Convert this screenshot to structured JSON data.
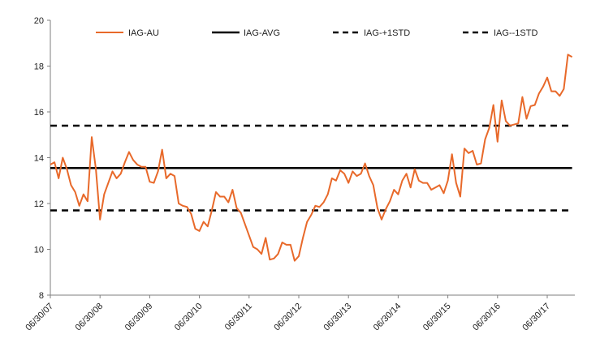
{
  "chart_data": {
    "type": "line",
    "title": "",
    "xlabel": "",
    "ylabel": "",
    "ylim": [
      8,
      20
    ],
    "y_ticks": [
      "8",
      "10",
      "12",
      "14",
      "16",
      "18",
      "20"
    ],
    "x_ticks": [
      "06/30/07",
      "06/30/08",
      "06/30/09",
      "06/30/10",
      "06/30/11",
      "06/30/12",
      "06/30/13",
      "06/30/14",
      "06/30/15",
      "06/30/16",
      "06/30/17"
    ],
    "x_start": "06/30/07",
    "x_step": "monthly",
    "grid": false,
    "legend_position": "top",
    "series": [
      {
        "name": "IAG-AU",
        "color": "#E8692A",
        "style": "solid",
        "values": [
          13.7,
          13.8,
          13.1,
          14.0,
          13.5,
          12.8,
          12.5,
          11.9,
          12.4,
          12.1,
          14.9,
          13.5,
          11.3,
          12.4,
          12.9,
          13.4,
          13.1,
          13.3,
          13.8,
          14.25,
          13.9,
          13.7,
          13.6,
          13.6,
          12.95,
          12.9,
          13.4,
          14.35,
          13.1,
          13.3,
          13.2,
          12.0,
          11.9,
          11.85,
          11.55,
          10.9,
          10.8,
          11.2,
          11.0,
          11.7,
          12.5,
          12.3,
          12.3,
          12.05,
          12.6,
          11.8,
          11.6,
          11.1,
          10.6,
          10.1,
          10.0,
          9.8,
          10.5,
          9.55,
          9.6,
          9.8,
          10.3,
          10.2,
          10.2,
          9.5,
          9.7,
          10.5,
          11.2,
          11.5,
          11.9,
          11.85,
          12.05,
          12.4,
          13.1,
          13.0,
          13.45,
          13.3,
          12.9,
          13.4,
          13.2,
          13.3,
          13.75,
          13.2,
          12.8,
          11.8,
          11.3,
          11.75,
          12.1,
          12.6,
          12.4,
          13.0,
          13.3,
          12.7,
          13.5,
          13.0,
          12.9,
          12.9,
          12.6,
          12.7,
          12.8,
          12.45,
          13.0,
          14.15,
          12.9,
          12.3,
          14.4,
          14.2,
          14.3,
          13.7,
          13.75,
          14.8,
          15.3,
          16.3,
          14.7,
          16.5,
          15.6,
          15.4,
          15.45,
          15.5,
          16.65,
          15.7,
          16.25,
          16.3,
          16.8,
          17.1,
          17.5,
          16.9,
          16.9,
          16.7,
          17.0,
          18.5,
          18.4
        ]
      },
      {
        "name": "IAG-AVG",
        "color": "#000000",
        "style": "solid",
        "values": [
          13.55,
          13.55
        ]
      },
      {
        "name": "IAG-+1STD",
        "color": "#000000",
        "style": "dashed",
        "values": [
          15.4,
          15.4
        ]
      },
      {
        "name": "IAG--1STD",
        "color": "#000000",
        "style": "dashed",
        "values": [
          11.7,
          11.7
        ]
      }
    ]
  }
}
